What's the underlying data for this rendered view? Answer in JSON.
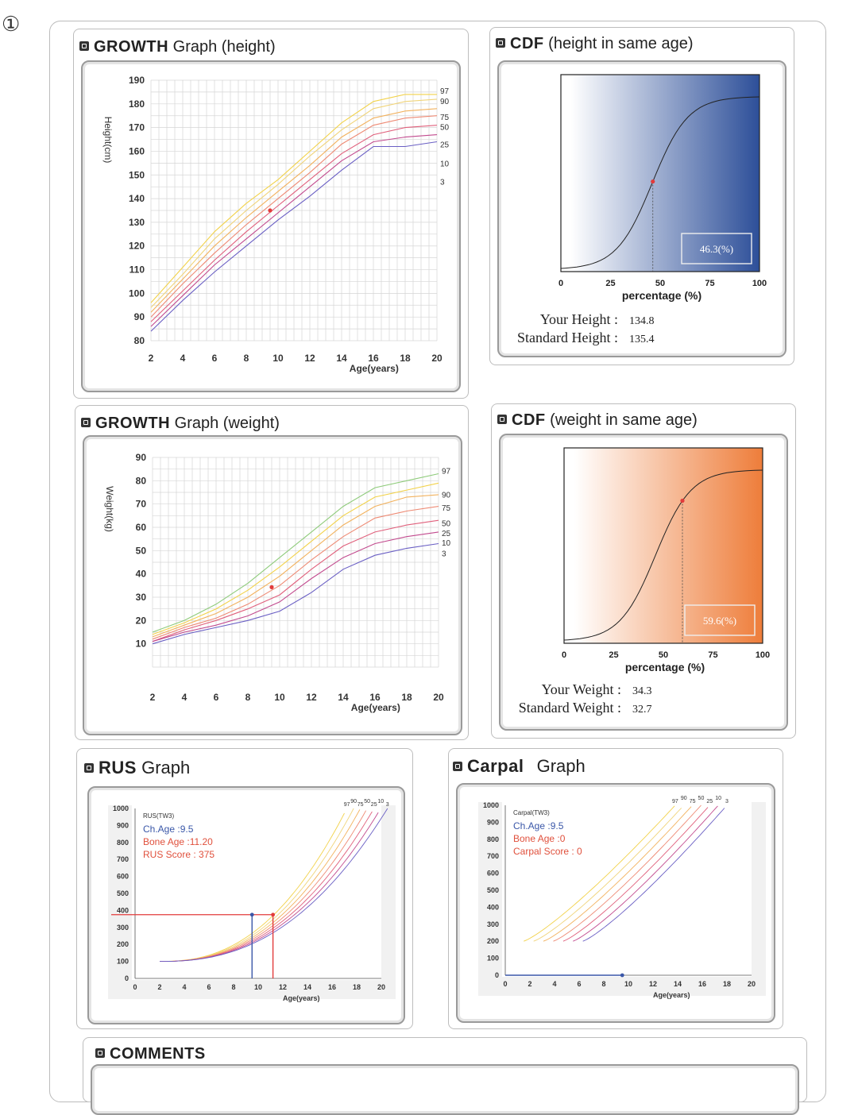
{
  "corner_mark": "①",
  "panels": {
    "height_growth": {
      "title_bold": "GROWTH",
      "title_rest": "Graph (height)"
    },
    "height_cdf": {
      "title_bold": "CDF",
      "title_rest": "(height in same age)"
    },
    "weight_growth": {
      "title_bold": "GROWTH",
      "title_rest": "Graph (weight)"
    },
    "weight_cdf": {
      "title_bold": "CDF",
      "title_rest": "(weight in same age)"
    },
    "rus": {
      "title_bold": "RUS",
      "title_rest": "Graph"
    },
    "carpal": {
      "title_bold": "Carpal",
      "title_rest": "Graph"
    },
    "comments": {
      "title_bold": "COMMENTS",
      "title_rest": ""
    }
  },
  "height_cdf_info": {
    "your_label": "Your Height :",
    "your_value": "134.8",
    "std_label": "Standard Height :",
    "std_value": "135.4"
  },
  "weight_cdf_info": {
    "your_label": "Your Weight :",
    "your_value": "34.3",
    "std_label": "Standard Weight :",
    "std_value": "32.7"
  },
  "rus_info": {
    "title": "RUS(TW3)",
    "chage": "Ch.Age :9.5",
    "bone_age": "Bone Age :11.20",
    "score": "RUS Score : 375"
  },
  "carpal_info": {
    "title": "Carpal(TW3)",
    "chage": "Ch.Age :9.5",
    "bone_age": "Bone Age :0",
    "score": "Carpal Score : 0"
  },
  "chart_data": [
    {
      "id": "height_growth",
      "type": "line",
      "xlabel": "Age(years)",
      "ylabel": "Height(cm)",
      "xlim": [
        2,
        20
      ],
      "ylim": [
        80,
        190
      ],
      "xticks": [
        "2",
        "4",
        "6",
        "8",
        "10",
        "12",
        "14",
        "16",
        "18",
        "20"
      ],
      "yticks": [
        "80",
        "90",
        "100",
        "110",
        "120",
        "130",
        "140",
        "150",
        "160",
        "170",
        "180",
        "190"
      ],
      "x": [
        2,
        4,
        6,
        8,
        10,
        12,
        14,
        16,
        18,
        20
      ],
      "series": [
        {
          "name": "97",
          "color": "#f2d24a",
          "values": [
            96,
            111,
            126,
            138,
            148,
            160,
            172,
            181,
            184,
            184
          ]
        },
        {
          "name": "90",
          "color": "#f0d47a",
          "values": [
            94,
            108,
            123,
            135,
            146,
            158,
            169,
            178,
            181,
            182
          ]
        },
        {
          "name": "75",
          "color": "#f2b25e",
          "values": [
            92,
            106,
            120,
            132,
            143,
            154,
            166,
            174,
            177,
            178
          ]
        },
        {
          "name": "50",
          "color": "#ee8a74",
          "values": [
            90,
            104,
            117,
            129,
            140,
            151,
            163,
            171,
            174,
            175
          ]
        },
        {
          "name": "25",
          "color": "#e0607c",
          "values": [
            88,
            101,
            114,
            126,
            137,
            148,
            159,
            167,
            170,
            171
          ]
        },
        {
          "name": "10",
          "color": "#c24a8e",
          "values": [
            86,
            99,
            112,
            123,
            134,
            145,
            156,
            164,
            166,
            167
          ]
        },
        {
          "name": "3",
          "color": "#6a5fc4",
          "values": [
            84,
            97,
            109,
            120,
            131,
            141,
            152,
            162,
            162,
            164
          ]
        }
      ],
      "point": {
        "x": 9.5,
        "y": 135
      },
      "point_color": "#e23b3b"
    },
    {
      "id": "height_cdf",
      "type": "line",
      "xlabel": "percentage (%)",
      "xticks": [
        "0",
        "25",
        "50",
        "75",
        "100"
      ],
      "xlim": [
        0,
        100
      ],
      "percent": 46.3,
      "label": "46.3(%)",
      "gradient": [
        "#ffffff",
        "#2d4f99"
      ]
    },
    {
      "id": "weight_growth",
      "type": "line",
      "xlabel": "Age(years)",
      "ylabel": "Weight(kg)",
      "xlim": [
        2,
        20
      ],
      "ylim": [
        0,
        90
      ],
      "xticks": [
        "2",
        "4",
        "6",
        "8",
        "10",
        "12",
        "14",
        "16",
        "18",
        "20"
      ],
      "yticks": [
        "10",
        "20",
        "30",
        "40",
        "50",
        "60",
        "70",
        "80",
        "90"
      ],
      "x": [
        2,
        4,
        6,
        8,
        10,
        12,
        14,
        16,
        18,
        20
      ],
      "series": [
        {
          "name": "97",
          "color": "#8ecb7a",
          "values": [
            15,
            20,
            27,
            36,
            47,
            58,
            69,
            77,
            80,
            83
          ]
        },
        {
          "name": "90",
          "color": "#f2d24a",
          "values": [
            14,
            19,
            25,
            33,
            43,
            54,
            65,
            73,
            76,
            79
          ]
        },
        {
          "name": "75",
          "color": "#f2b25e",
          "values": [
            13,
            18,
            23,
            30,
            39,
            50,
            61,
            69,
            73,
            74
          ]
        },
        {
          "name": "50",
          "color": "#ee8a74",
          "values": [
            12,
            17,
            21,
            27,
            35,
            46,
            56,
            64,
            67,
            69
          ]
        },
        {
          "name": "25",
          "color": "#e0607c",
          "values": [
            11,
            16,
            20,
            25,
            31,
            42,
            52,
            58,
            61,
            63
          ]
        },
        {
          "name": "10",
          "color": "#c24a8e",
          "values": [
            11,
            15,
            18,
            22,
            28,
            38,
            47,
            53,
            56,
            58
          ]
        },
        {
          "name": "3",
          "color": "#6a5fc4",
          "values": [
            10,
            14,
            17,
            20,
            24,
            32,
            42,
            48,
            51,
            53
          ]
        }
      ],
      "point": {
        "x": 9.5,
        "y": 34.3
      },
      "point_color": "#e23b3b"
    },
    {
      "id": "weight_cdf",
      "type": "line",
      "xlabel": "percentage (%)",
      "xticks": [
        "0",
        "25",
        "50",
        "75",
        "100"
      ],
      "xlim": [
        0,
        100
      ],
      "percent": 59.6,
      "label": "59.6(%)",
      "gradient": [
        "#ffffff",
        "#ee7d3a"
      ]
    },
    {
      "id": "rus",
      "type": "line",
      "xlabel": "Age(years)",
      "xlim": [
        0,
        20
      ],
      "ylim": [
        0,
        1000
      ],
      "xticks": [
        "0",
        "2",
        "4",
        "6",
        "8",
        "10",
        "12",
        "14",
        "16",
        "18",
        "20"
      ],
      "yticks": [
        "0",
        "100",
        "200",
        "300",
        "400",
        "500",
        "600",
        "700",
        "800",
        "900",
        "1000"
      ],
      "series_labels": [
        "97",
        "90",
        "75",
        "50",
        "25",
        "10",
        "3"
      ],
      "point": {
        "x": 9.5,
        "y": 375
      },
      "point2": {
        "x": 11.2,
        "y": 375
      }
    },
    {
      "id": "carpal",
      "type": "line",
      "xlabel": "Age(years)",
      "xlim": [
        0,
        20
      ],
      "ylim": [
        0,
        1000
      ],
      "xticks": [
        "0",
        "2",
        "4",
        "6",
        "8",
        "10",
        "12",
        "14",
        "16",
        "18",
        "20"
      ],
      "yticks": [
        "0",
        "100",
        "200",
        "300",
        "400",
        "500",
        "600",
        "700",
        "800",
        "900",
        "1000"
      ],
      "series_labels": [
        "97",
        "90",
        "75",
        "50",
        "25",
        "10",
        "3"
      ],
      "point": {
        "x": 9.5,
        "y": 0
      }
    }
  ]
}
